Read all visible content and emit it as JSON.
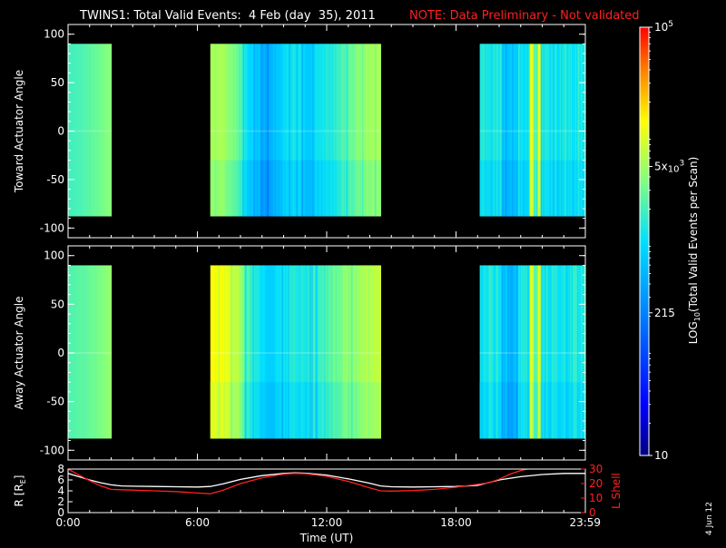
{
  "header": {
    "title": "TWINS1: Total Valid Events:  4 Feb (day  35), 2011",
    "note": "NOTE: Data Preliminary - Not validated"
  },
  "colors": {
    "background": "#000000",
    "axis": "#ffffff",
    "note": "#ff2020",
    "r_line": "#ffffff",
    "l_line": "#ff2020"
  },
  "footer_stamp": "4 Jun 12",
  "colorbar": {
    "label": "LOG10(Total Valid Events per Scan)",
    "label_pre": "LOG",
    "label_sub": "10",
    "label_post": "(Total Valid Events per Scan)",
    "ticks": [
      {
        "value": 100000,
        "base": "10",
        "exp": "5"
      },
      {
        "value": 5000,
        "base": "5x",
        "mid": "10",
        "exp": "3"
      },
      {
        "value": 215,
        "base": "215"
      },
      {
        "value": 10,
        "base": "10"
      }
    ],
    "min": 10,
    "max": 100000
  },
  "chart_data": [
    {
      "type": "heatmap",
      "name": "toward",
      "ylabel": "Toward Actuator Angle",
      "ylim": [
        -110,
        110
      ],
      "yticks": [
        100,
        50,
        0,
        -50,
        -100
      ],
      "angle_range": [
        -88,
        90
      ],
      "xlim_hours": [
        0,
        24
      ],
      "segments": [
        {
          "start": 0.0,
          "end": 2.0,
          "type": "smooth",
          "base": 3.28,
          "trend": 0.32,
          "shaded_end": 0.72
        },
        {
          "start": 6.6,
          "end": 14.5,
          "type": "mixed",
          "base": 3.45,
          "trend": 0.0,
          "shaded_end": 0.72
        },
        {
          "start": 19.1,
          "end": 23.99,
          "type": "striped",
          "base": 3.1,
          "trend": 0.0,
          "shaded_end": 0.72
        }
      ],
      "profile": [
        {
          "h": 6.6,
          "v": 3.75
        },
        {
          "h": 7.3,
          "v": 3.68
        },
        {
          "h": 7.9,
          "v": 3.45
        },
        {
          "h": 8.4,
          "v": 2.95
        },
        {
          "h": 8.9,
          "v": 2.75
        },
        {
          "h": 9.2,
          "v": 2.55
        },
        {
          "h": 9.6,
          "v": 2.8
        },
        {
          "h": 10.0,
          "v": 2.95
        },
        {
          "h": 10.6,
          "v": 3.1
        },
        {
          "h": 11.2,
          "v": 2.85
        },
        {
          "h": 11.6,
          "v": 3.05
        },
        {
          "h": 12.2,
          "v": 3.15
        },
        {
          "h": 12.8,
          "v": 3.35
        },
        {
          "h": 13.4,
          "v": 3.55
        },
        {
          "h": 14.0,
          "v": 3.7
        },
        {
          "h": 14.5,
          "v": 3.75
        }
      ]
    },
    {
      "type": "heatmap",
      "name": "away",
      "ylabel": "Away Actuator Angle",
      "ylim": [
        -110,
        110
      ],
      "yticks": [
        100,
        50,
        0,
        -50,
        -100
      ],
      "angle_range": [
        -88,
        90
      ],
      "xlim_hours": [
        0,
        24
      ],
      "segments": [
        {
          "start": 0.0,
          "end": 2.0,
          "type": "smooth",
          "base": 3.35,
          "trend": 0.28,
          "shaded_end": 0.72
        },
        {
          "start": 6.6,
          "end": 14.5,
          "type": "mixed",
          "base": 3.6,
          "trend": 0.0,
          "shaded_end": 0.72
        },
        {
          "start": 19.1,
          "end": 23.99,
          "type": "striped",
          "base": 3.1,
          "trend": 0.0,
          "shaded_end": 0.72
        }
      ],
      "profile": [
        {
          "h": 6.6,
          "v": 4.1
        },
        {
          "h": 7.3,
          "v": 4.05
        },
        {
          "h": 7.9,
          "v": 3.75
        },
        {
          "h": 8.4,
          "v": 3.3
        },
        {
          "h": 8.9,
          "v": 3.05
        },
        {
          "h": 9.3,
          "v": 2.85
        },
        {
          "h": 9.8,
          "v": 3.0
        },
        {
          "h": 10.4,
          "v": 3.2
        },
        {
          "h": 11.0,
          "v": 3.1
        },
        {
          "h": 11.6,
          "v": 3.3
        },
        {
          "h": 12.2,
          "v": 3.4
        },
        {
          "h": 12.8,
          "v": 3.55
        },
        {
          "h": 13.4,
          "v": 3.65
        },
        {
          "h": 14.0,
          "v": 3.75
        },
        {
          "h": 14.5,
          "v": 3.85
        }
      ]
    },
    {
      "type": "line",
      "name": "orbit",
      "xlabel": "Time (UT)",
      "xticks": [
        {
          "h": 0,
          "label": "0:00"
        },
        {
          "h": 6,
          "label": "6:00"
        },
        {
          "h": 12,
          "label": "12:00"
        },
        {
          "h": 18,
          "label": "18:00"
        },
        {
          "h": 23.99,
          "label": "23:59"
        }
      ],
      "left_axis": {
        "label": "R [RE]",
        "label_pre": "R [R",
        "label_sub": "E",
        "label_post": "]",
        "ylim": [
          0,
          8
        ],
        "ticks": [
          8,
          6,
          4,
          2,
          0
        ]
      },
      "right_axis": {
        "label": "L Shell",
        "ylim": [
          0,
          30
        ],
        "ticks": [
          30,
          20,
          10,
          0
        ]
      },
      "series": [
        {
          "name": "R",
          "axis": "left",
          "x": [
            0,
            0.5,
            1.0,
            1.5,
            2.0,
            2.5,
            3,
            4,
            5,
            6,
            6.6,
            7.2,
            8,
            9,
            10,
            10.5,
            11,
            12,
            13,
            14,
            14.5,
            15,
            16,
            17,
            18,
            19,
            19.5,
            20,
            21,
            22,
            23,
            23.99
          ],
          "values": [
            7.2,
            6.6,
            6.0,
            5.5,
            5.1,
            4.9,
            4.85,
            4.8,
            4.75,
            4.7,
            4.8,
            5.3,
            6.1,
            6.8,
            7.2,
            7.3,
            7.25,
            6.9,
            6.2,
            5.4,
            4.9,
            4.75,
            4.7,
            4.75,
            4.8,
            5.0,
            5.5,
            6.0,
            6.6,
            7.0,
            7.2,
            7.2
          ]
        },
        {
          "name": "L Shell",
          "axis": "right",
          "x": [
            0,
            0.5,
            1.0,
            1.5,
            2.0,
            3,
            4,
            5,
            6,
            6.6,
            7.2,
            8,
            9,
            10,
            10.5,
            11,
            12,
            13,
            14,
            14.5,
            15,
            16,
            17,
            18,
            19,
            19.5,
            20,
            20.5,
            21,
            21.3
          ],
          "values": [
            30,
            26,
            22,
            18.5,
            16,
            15.5,
            15,
            14.5,
            13.5,
            13,
            15.5,
            20,
            24,
            26.5,
            27,
            26.8,
            25,
            21.5,
            17,
            15,
            14.8,
            15.2,
            16,
            17.5,
            19.5,
            20.5,
            23,
            26.5,
            29,
            30
          ]
        }
      ]
    }
  ]
}
